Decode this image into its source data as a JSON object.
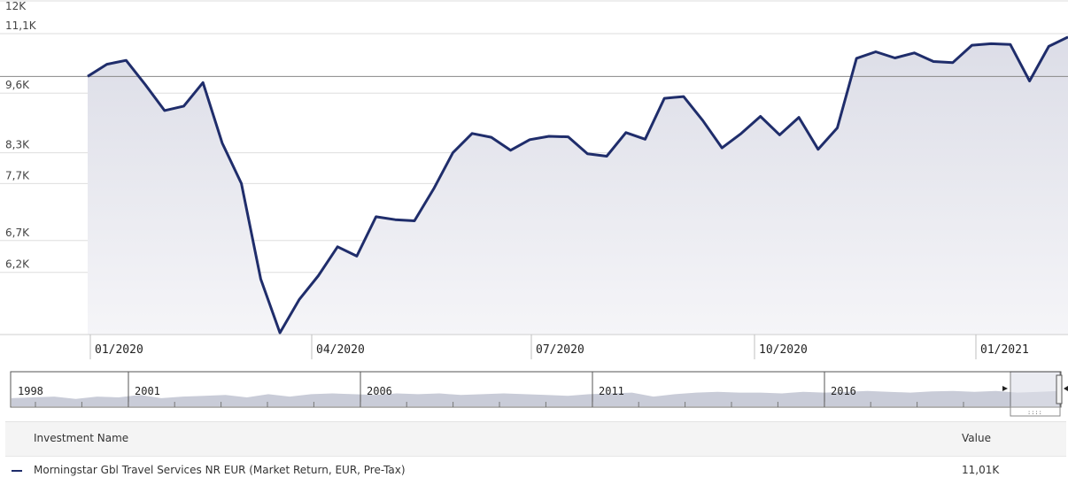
{
  "chart_data": {
    "type": "line",
    "y_ticks": [
      "12K",
      "11,1K",
      "9,6K",
      "8,3K",
      "7,7K",
      "6,7K",
      "6,2K"
    ],
    "x_ticks": [
      "01/2020",
      "04/2020",
      "07/2020",
      "10/2020",
      "01/2021"
    ],
    "reference_line": 10000,
    "series": [
      {
        "name": "Morningstar Gbl Travel Services NR EUR (Market Return, EUR, Pre-Tax)",
        "color": "#1f2d6b",
        "values": [
          10000,
          10300,
          10400,
          9800,
          9200,
          9300,
          9850,
          8500,
          7700,
          6100,
          5350,
          5800,
          6150,
          6600,
          6450,
          7100,
          7050,
          7030,
          7600,
          8300,
          8700,
          8620,
          8350,
          8570,
          8640,
          8630,
          8280,
          8230,
          8720,
          8580,
          9480,
          9520,
          8980,
          8400,
          8700,
          9070,
          8670,
          9050,
          8370,
          8820,
          10450,
          10620,
          10460,
          10590,
          10370,
          10340,
          10790,
          10830,
          10810,
          9890,
          10760,
          11010
        ]
      }
    ]
  },
  "navigator": {
    "labels": [
      "1998",
      "2001",
      "2006",
      "2011",
      "2016"
    ]
  },
  "legend": {
    "header_name": "Investment Name",
    "header_value": "Value",
    "rows": [
      {
        "name": "Morningstar Gbl Travel Services NR EUR (Market Return, EUR, Pre-Tax)",
        "value": "11,01K",
        "color": "#1f2d6b"
      }
    ]
  }
}
